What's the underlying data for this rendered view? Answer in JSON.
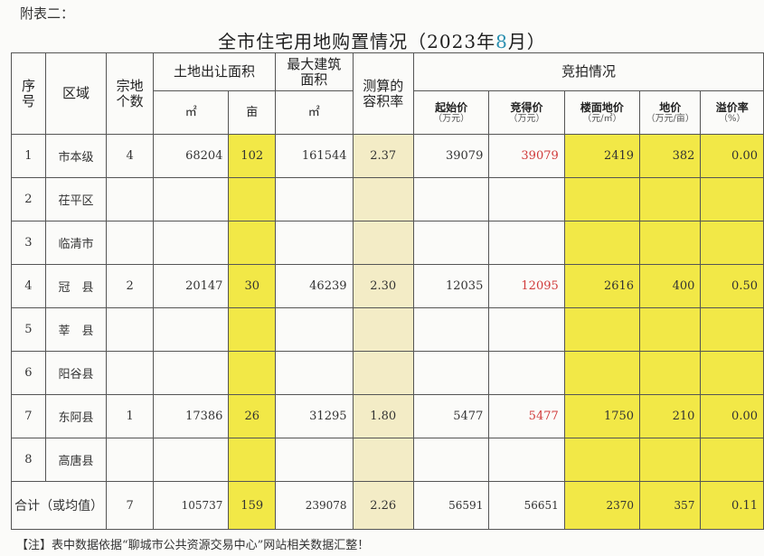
{
  "annex_label": "附表二：",
  "title_prefix": "全市住宅用地购置情况（2023年",
  "title_month": "8",
  "title_suffix": "月）",
  "headers": {
    "seq": "序号",
    "region": "区域",
    "parcels": "宗地个数",
    "land_area": "土地出让面积",
    "max_build_area": "最大建筑面积",
    "far": "测算的容积率",
    "auction": "竞拍情况",
    "unit_m2": "㎡",
    "unit_mu": "亩",
    "start_price": "起始价",
    "start_price_unit": "（万元）",
    "final_price": "竞得价",
    "final_price_unit": "（万元）",
    "floor_price": "楼面地价",
    "floor_price_unit": "（元/㎡）",
    "land_price": "地价",
    "land_price_unit": "（万元/亩）",
    "premium": "溢价率",
    "premium_unit": "（%）"
  },
  "rows": [
    {
      "seq": "1",
      "region": "市本级",
      "parcels": "4",
      "area_m2": "68204",
      "area_mu": "102",
      "build": "161544",
      "far": "2.37",
      "start": "39079",
      "final": "39079",
      "floor": "2419",
      "land": "382",
      "premium": "0.00"
    },
    {
      "seq": "2",
      "region": "茌平区",
      "parcels": "",
      "area_m2": "",
      "area_mu": "",
      "build": "",
      "far": "",
      "start": "",
      "final": "",
      "floor": "",
      "land": "",
      "premium": ""
    },
    {
      "seq": "3",
      "region": "临清市",
      "parcels": "",
      "area_m2": "",
      "area_mu": "",
      "build": "",
      "far": "",
      "start": "",
      "final": "",
      "floor": "",
      "land": "",
      "premium": ""
    },
    {
      "seq": "4",
      "region": "冠　县",
      "parcels": "2",
      "area_m2": "20147",
      "area_mu": "30",
      "build": "46239",
      "far": "2.30",
      "start": "12035",
      "final": "12095",
      "floor": "2616",
      "land": "400",
      "premium": "0.50"
    },
    {
      "seq": "5",
      "region": "莘　县",
      "parcels": "",
      "area_m2": "",
      "area_mu": "",
      "build": "",
      "far": "",
      "start": "",
      "final": "",
      "floor": "",
      "land": "",
      "premium": ""
    },
    {
      "seq": "6",
      "region": "阳谷县",
      "parcels": "",
      "area_m2": "",
      "area_mu": "",
      "build": "",
      "far": "",
      "start": "",
      "final": "",
      "floor": "",
      "land": "",
      "premium": ""
    },
    {
      "seq": "7",
      "region": "东阿县",
      "parcels": "1",
      "area_m2": "17386",
      "area_mu": "26",
      "build": "31295",
      "far": "1.80",
      "start": "5477",
      "final": "5477",
      "floor": "1750",
      "land": "210",
      "premium": "0.00"
    },
    {
      "seq": "8",
      "region": "高唐县",
      "parcels": "",
      "area_m2": "",
      "area_mu": "",
      "build": "",
      "far": "",
      "start": "",
      "final": "",
      "floor": "",
      "land": "",
      "premium": ""
    }
  ],
  "total": {
    "label": "合计（或均值）",
    "parcels": "7",
    "area_m2": "105737",
    "area_mu": "159",
    "build": "239078",
    "far": "2.26",
    "start": "56591",
    "final": "56651",
    "floor": "2370",
    "land": "357",
    "premium": "0.11"
  },
  "note": "【注】表中数据依据“聊城市公共资源交易中心”网站相关数据汇整！",
  "colors": {
    "highlight": "#f2e847",
    "far_shade": "#f3ecc6",
    "final_price_text": "#d03a3a",
    "title_month": "#2a8fb0"
  }
}
